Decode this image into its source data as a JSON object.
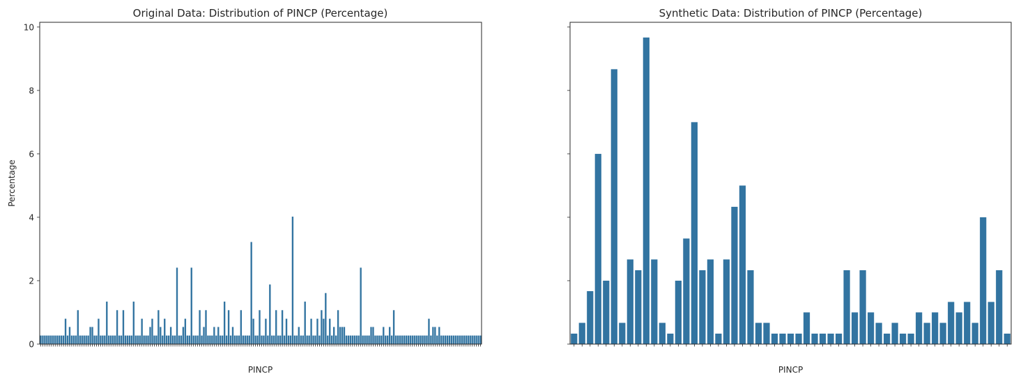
{
  "figure": {
    "ylabel": "Percentage",
    "xlabel": "PINCP"
  },
  "chart_data": [
    {
      "type": "bar",
      "title": "Original Data: Distribution of PINCP (Percentage)",
      "xlabel": "PINCP",
      "ylabel": "Percentage",
      "ylim": [
        0,
        10.15
      ],
      "yticks": [
        0,
        2,
        4,
        6,
        8,
        10
      ],
      "bar_color": "#3274a1",
      "category_tick_labels_note": "",
      "values": [
        0.27,
        0.27,
        0.27,
        0.27,
        0.27,
        0.27,
        0.27,
        0.27,
        0.27,
        0.27,
        0.27,
        0.27,
        0.8,
        0.27,
        0.54,
        0.27,
        0.27,
        0.27,
        1.07,
        0.27,
        0.27,
        0.27,
        0.27,
        0.27,
        0.54,
        0.54,
        0.27,
        0.27,
        0.8,
        0.27,
        0.27,
        0.27,
        1.34,
        0.27,
        0.27,
        0.27,
        0.27,
        1.07,
        0.27,
        0.27,
        1.07,
        0.27,
        0.27,
        0.27,
        0.27,
        1.34,
        0.27,
        0.27,
        0.27,
        0.8,
        0.27,
        0.27,
        0.27,
        0.54,
        0.8,
        0.27,
        0.27,
        1.07,
        0.54,
        0.27,
        0.8,
        0.27,
        0.27,
        0.54,
        0.27,
        0.27,
        2.41,
        0.27,
        0.27,
        0.54,
        0.8,
        0.27,
        0.27,
        2.41,
        0.27,
        0.27,
        0.27,
        1.07,
        0.27,
        0.54,
        1.07,
        0.27,
        0.27,
        0.27,
        0.54,
        0.27,
        0.54,
        0.27,
        0.27,
        1.34,
        0.27,
        1.07,
        0.27,
        0.54,
        0.27,
        0.27,
        0.27,
        1.07,
        0.27,
        0.27,
        0.27,
        0.27,
        3.22,
        0.8,
        0.27,
        0.27,
        1.07,
        0.27,
        0.27,
        0.8,
        0.27,
        1.88,
        0.27,
        0.27,
        1.07,
        0.27,
        0.27,
        1.07,
        0.27,
        0.8,
        0.27,
        0.27,
        4.02,
        0.27,
        0.27,
        0.54,
        0.27,
        0.27,
        1.34,
        0.27,
        0.27,
        0.8,
        0.27,
        0.27,
        0.8,
        0.27,
        1.07,
        0.8,
        1.61,
        0.27,
        0.8,
        0.27,
        0.54,
        0.27,
        1.07,
        0.54,
        0.54,
        0.54,
        0.27,
        0.27,
        0.27,
        0.27,
        0.27,
        0.27,
        0.27,
        2.41,
        0.27,
        0.27,
        0.27,
        0.27,
        0.54,
        0.54,
        0.27,
        0.27,
        0.27,
        0.27,
        0.54,
        0.27,
        0.27,
        0.54,
        0.27,
        1.07,
        0.27,
        0.27,
        0.27,
        0.27,
        0.27,
        0.27,
        0.27,
        0.27,
        0.27,
        0.27,
        0.27,
        0.27,
        0.27,
        0.27,
        0.27,
        0.27,
        0.8,
        0.27,
        0.54,
        0.54,
        0.27,
        0.54,
        0.27,
        0.27,
        0.27,
        0.27,
        0.27,
        0.27,
        0.27,
        0.27,
        0.27,
        0.27,
        0.27,
        0.27,
        0.27,
        0.27,
        0.27,
        0.27,
        0.27,
        0.27,
        0.27,
        0.27
      ]
    },
    {
      "type": "bar",
      "title": "Synthetic Data: Distribution of PINCP (Percentage)",
      "xlabel": "PINCP",
      "ylabel": "",
      "ylim": [
        0,
        10.15
      ],
      "yticks": [
        0,
        2,
        4,
        6,
        8,
        10
      ],
      "bar_color": "#3274a1",
      "category_tick_labels_note": "",
      "values": [
        0.33,
        0.67,
        1.67,
        6.0,
        2.0,
        8.67,
        0.67,
        2.67,
        2.33,
        9.67,
        2.67,
        0.67,
        0.33,
        2.0,
        3.33,
        7.0,
        2.33,
        2.67,
        0.33,
        2.67,
        4.33,
        5.0,
        2.33,
        0.67,
        0.67,
        0.33,
        0.33,
        0.33,
        0.33,
        1.0,
        0.33,
        0.33,
        0.33,
        0.33,
        2.33,
        1.0,
        2.33,
        1.0,
        0.67,
        0.33,
        0.67,
        0.33,
        0.33,
        1.0,
        0.67,
        1.0,
        0.67,
        1.33,
        1.0,
        1.33,
        0.67,
        4.0,
        1.33,
        2.33,
        0.33
      ]
    }
  ]
}
